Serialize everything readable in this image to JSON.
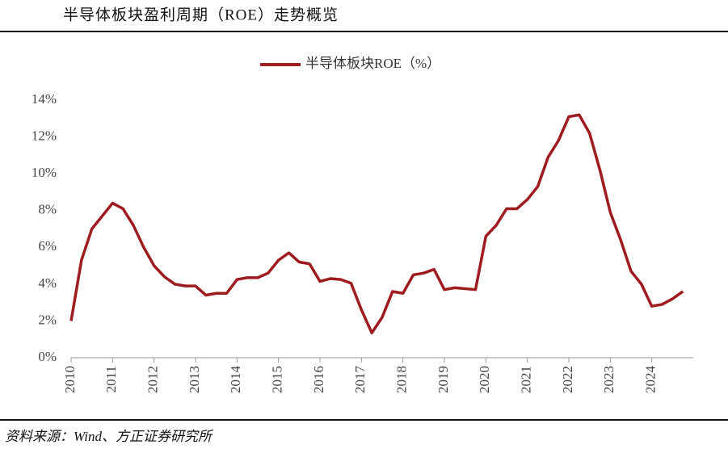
{
  "chart_data": {
    "type": "line",
    "title": "半导体板块盈利周期（ROE）走势概览",
    "source": "资料来源：Wind、方正证券研究所",
    "x": [
      2010,
      2010.25,
      2010.5,
      2010.75,
      2011,
      2011.25,
      2011.5,
      2011.75,
      2012,
      2012.25,
      2012.5,
      2012.75,
      2013,
      2013.25,
      2013.5,
      2013.75,
      2014,
      2014.25,
      2014.5,
      2014.75,
      2015,
      2015.25,
      2015.5,
      2015.75,
      2016,
      2016.25,
      2016.5,
      2016.75,
      2017,
      2017.25,
      2017.5,
      2017.75,
      2018,
      2018.25,
      2018.5,
      2018.75,
      2019,
      2019.25,
      2019.5,
      2019.75,
      2020,
      2020.25,
      2020.5,
      2020.75,
      2021,
      2021.25,
      2021.5,
      2021.75,
      2022,
      2022.25,
      2022.5,
      2022.75,
      2023,
      2023.25,
      2023.5,
      2023.75,
      2024,
      2024.25,
      2024.5,
      2024.75
    ],
    "series": [
      {
        "name": "半导体板块ROE（%）",
        "color": "#9e1b20",
        "values": [
          2.0,
          5.3,
          7.0,
          7.7,
          8.4,
          8.1,
          7.2,
          6.0,
          5.0,
          4.4,
          4.0,
          3.9,
          3.9,
          3.4,
          3.5,
          3.5,
          4.25,
          4.35,
          4.35,
          4.6,
          5.3,
          5.7,
          5.2,
          5.1,
          4.15,
          4.3,
          4.25,
          4.05,
          2.6,
          1.35,
          2.2,
          3.6,
          3.5,
          4.5,
          4.6,
          4.8,
          3.7,
          3.8,
          3.75,
          3.7,
          6.6,
          7.2,
          8.1,
          8.1,
          8.6,
          9.3,
          10.9,
          11.8,
          13.1,
          13.2,
          12.2,
          10.2,
          7.9,
          6.4,
          4.7,
          4.0,
          2.8,
          2.9,
          3.2,
          3.6
        ]
      }
    ],
    "xlim": [
      2010,
      2025
    ],
    "xticks": [
      2010,
      2011,
      2012,
      2013,
      2014,
      2015,
      2016,
      2017,
      2018,
      2019,
      2020,
      2021,
      2022,
      2023,
      2024
    ],
    "ylim": [
      0,
      14
    ],
    "yticks": [
      {
        "value": 0,
        "label": "0%"
      },
      {
        "value": 2,
        "label": "2%"
      },
      {
        "value": 4,
        "label": "4%"
      },
      {
        "value": 6,
        "label": "6%"
      },
      {
        "value": 8,
        "label": "8%"
      },
      {
        "value": 10,
        "label": "10%"
      },
      {
        "value": 12,
        "label": "12%"
      },
      {
        "value": 14,
        "label": "14%"
      }
    ],
    "grid": false,
    "legend": "top"
  }
}
